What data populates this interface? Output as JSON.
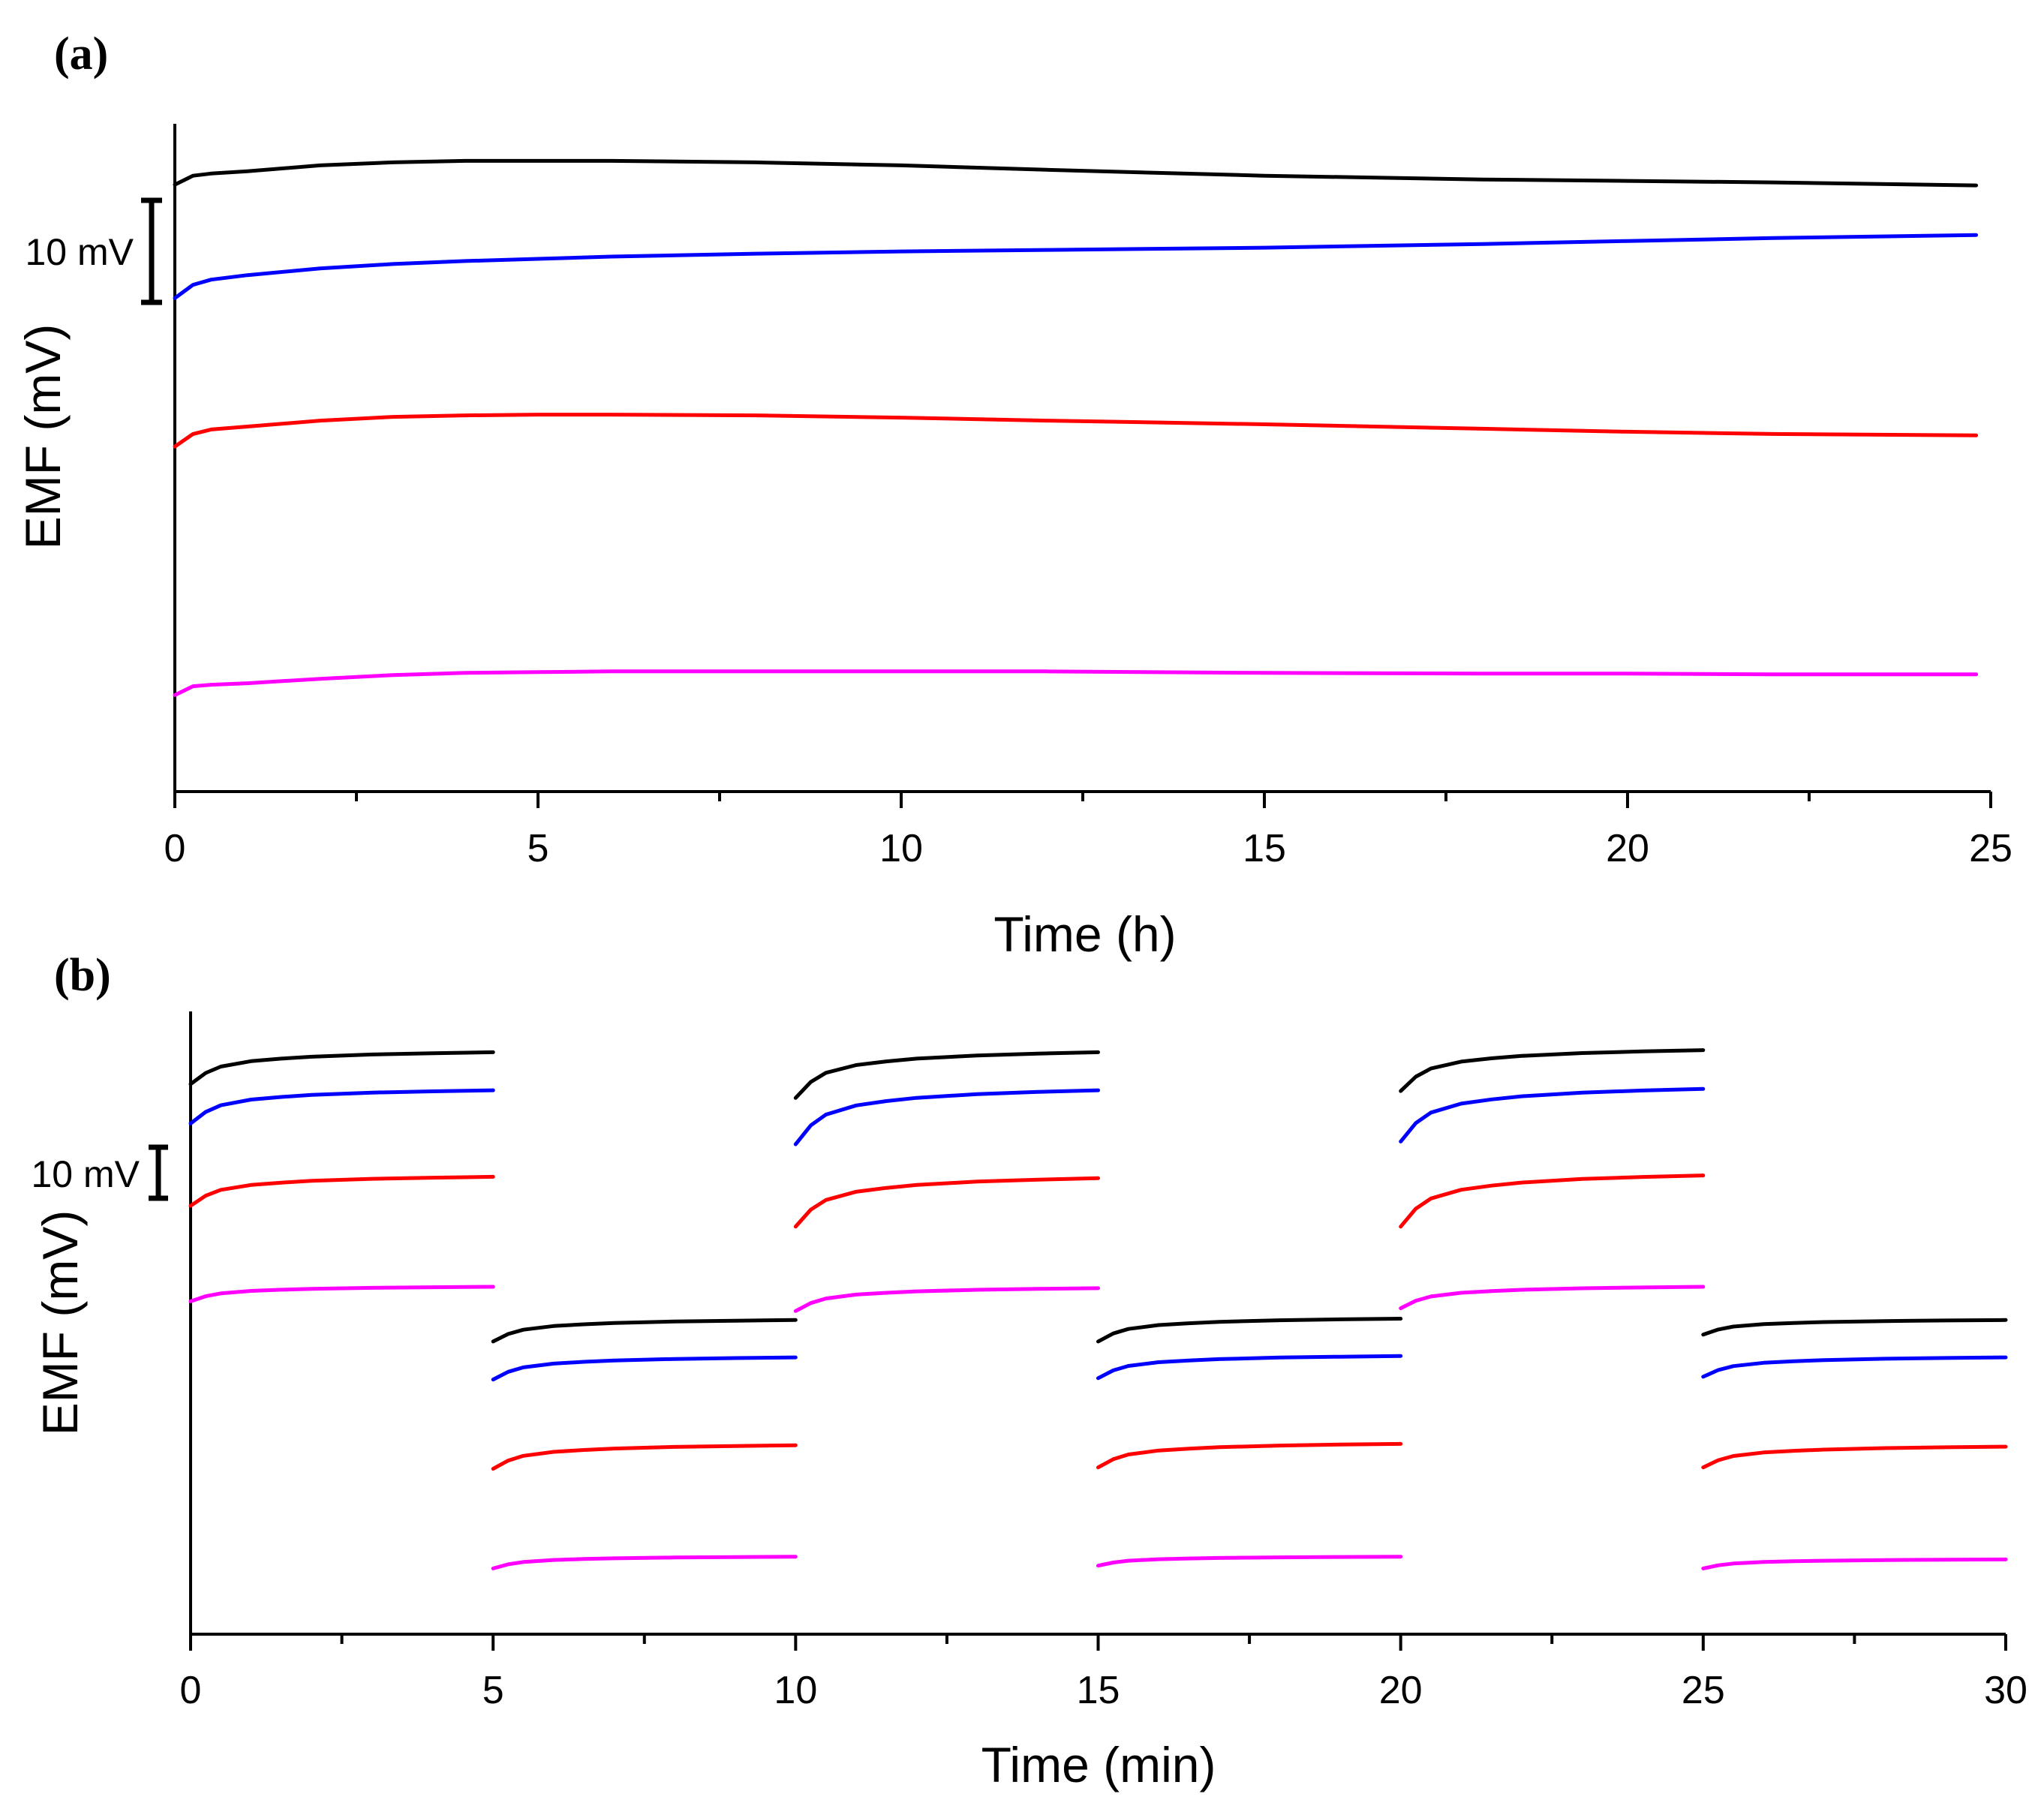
{
  "chart_data": [
    {
      "type": "line",
      "panel_label": "(a)",
      "xlabel": "Time (h)",
      "ylabel": "EMF (mV)",
      "xlim": [
        0,
        25
      ],
      "x_ticks": [
        "0",
        "5",
        "10",
        "15",
        "20",
        "25"
      ],
      "x_minor_step": 2.5,
      "scale_bar": {
        "label": "10 mV",
        "value_mv": 10
      },
      "ylim_mv": [
        0,
        90
      ],
      "y_tick_labels": "none",
      "series": [
        {
          "color": "#000000",
          "x": [
            0,
            0.25,
            0.5,
            1,
            2,
            3,
            4,
            5,
            6,
            8,
            10,
            12,
            15,
            18,
            20,
            22,
            24.8
          ],
          "y": [
            81.8,
            83.0,
            83.3,
            83.6,
            84.4,
            84.8,
            85.0,
            85.0,
            85.0,
            84.8,
            84.4,
            83.8,
            83.0,
            82.5,
            82.3,
            82.1,
            81.7
          ]
        },
        {
          "color": "#0000ff",
          "x": [
            0,
            0.25,
            0.5,
            1,
            2,
            3,
            4,
            5,
            6,
            8,
            10,
            12,
            15,
            18,
            20,
            22,
            24.8
          ],
          "y": [
            66.5,
            68.3,
            69.0,
            69.6,
            70.5,
            71.1,
            71.5,
            71.8,
            72.1,
            72.5,
            72.8,
            73.0,
            73.3,
            73.8,
            74.2,
            74.6,
            75.0
          ]
        },
        {
          "color": "#ff0000",
          "x": [
            0,
            0.25,
            0.5,
            1,
            2,
            3,
            4,
            5,
            6,
            8,
            10,
            12,
            15,
            18,
            20,
            22,
            24.8
          ],
          "y": [
            46.5,
            48.2,
            48.8,
            49.2,
            50.0,
            50.5,
            50.7,
            50.8,
            50.8,
            50.7,
            50.4,
            50.0,
            49.5,
            48.9,
            48.5,
            48.2,
            48.0
          ]
        },
        {
          "color": "#ff00ff",
          "x": [
            0,
            0.25,
            0.5,
            1,
            2,
            3,
            4,
            5,
            6,
            8,
            10,
            12,
            15,
            18,
            20,
            22,
            24.8
          ],
          "y": [
            13.0,
            14.2,
            14.4,
            14.6,
            15.2,
            15.7,
            16.0,
            16.1,
            16.2,
            16.2,
            16.2,
            16.2,
            16.0,
            15.9,
            15.9,
            15.8,
            15.8
          ]
        }
      ]
    },
    {
      "type": "line",
      "panel_label": "(b)",
      "xlabel": "Time (min)",
      "ylabel": "EMF (mV)",
      "xlim": [
        0,
        30
      ],
      "x_ticks": [
        "0",
        "5",
        "10",
        "15",
        "20",
        "25",
        "30"
      ],
      "x_minor_step": 2.5,
      "scale_bar": {
        "label": "10 mV",
        "value_mv": 10
      },
      "ylim_mv": [
        0,
        90
      ],
      "y_tick_labels": "none",
      "segment_shape_min": [
        0,
        0.25,
        0.5,
        1,
        1.5,
        2,
        3,
        4,
        5
      ],
      "segment_shape_rise": [
        0,
        0.35,
        0.55,
        0.72,
        0.8,
        0.86,
        0.93,
        0.97,
        1.0
      ],
      "series": [
        {
          "color": "#000000",
          "segments": [
            {
              "t0": 0,
              "t1": 5,
              "start": 79.5,
              "end": 84.1
            },
            {
              "t0": 5,
              "t1": 10,
              "start": 42.3,
              "end": 45.4
            },
            {
              "t0": 10,
              "t1": 15,
              "start": 77.5,
              "end": 84.1
            },
            {
              "t0": 15,
              "t1": 20,
              "start": 42.3,
              "end": 45.6
            },
            {
              "t0": 20,
              "t1": 25,
              "start": 78.5,
              "end": 84.4
            },
            {
              "t0": 25,
              "t1": 30,
              "start": 43.3,
              "end": 45.4
            }
          ]
        },
        {
          "color": "#0000ff",
          "segments": [
            {
              "t0": 0,
              "t1": 5,
              "start": 73.8,
              "end": 78.6
            },
            {
              "t0": 5,
              "t1": 10,
              "start": 36.8,
              "end": 40.0
            },
            {
              "t0": 10,
              "t1": 15,
              "start": 70.8,
              "end": 78.6
            },
            {
              "t0": 15,
              "t1": 20,
              "start": 37.0,
              "end": 40.2
            },
            {
              "t0": 20,
              "t1": 25,
              "start": 71.2,
              "end": 78.8
            },
            {
              "t0": 25,
              "t1": 30,
              "start": 37.2,
              "end": 40.0
            }
          ]
        },
        {
          "color": "#ff0000",
          "segments": [
            {
              "t0": 0,
              "t1": 5,
              "start": 61.9,
              "end": 66.1
            },
            {
              "t0": 5,
              "t1": 10,
              "start": 23.9,
              "end": 27.3
            },
            {
              "t0": 10,
              "t1": 15,
              "start": 58.9,
              "end": 65.9
            },
            {
              "t0": 15,
              "t1": 20,
              "start": 24.1,
              "end": 27.5
            },
            {
              "t0": 20,
              "t1": 25,
              "start": 58.9,
              "end": 66.3
            },
            {
              "t0": 25,
              "t1": 30,
              "start": 24.1,
              "end": 27.1
            }
          ]
        },
        {
          "color": "#ff00ff",
          "segments": [
            {
              "t0": 0,
              "t1": 5,
              "start": 48.1,
              "end": 50.2
            },
            {
              "t0": 5,
              "t1": 10,
              "start": 9.5,
              "end": 11.2
            },
            {
              "t0": 10,
              "t1": 15,
              "start": 46.7,
              "end": 50.0
            },
            {
              "t0": 15,
              "t1": 20,
              "start": 9.9,
              "end": 11.2
            },
            {
              "t0": 20,
              "t1": 25,
              "start": 47.1,
              "end": 50.2
            },
            {
              "t0": 25,
              "t1": 30,
              "start": 9.5,
              "end": 10.8
            }
          ]
        }
      ]
    }
  ]
}
